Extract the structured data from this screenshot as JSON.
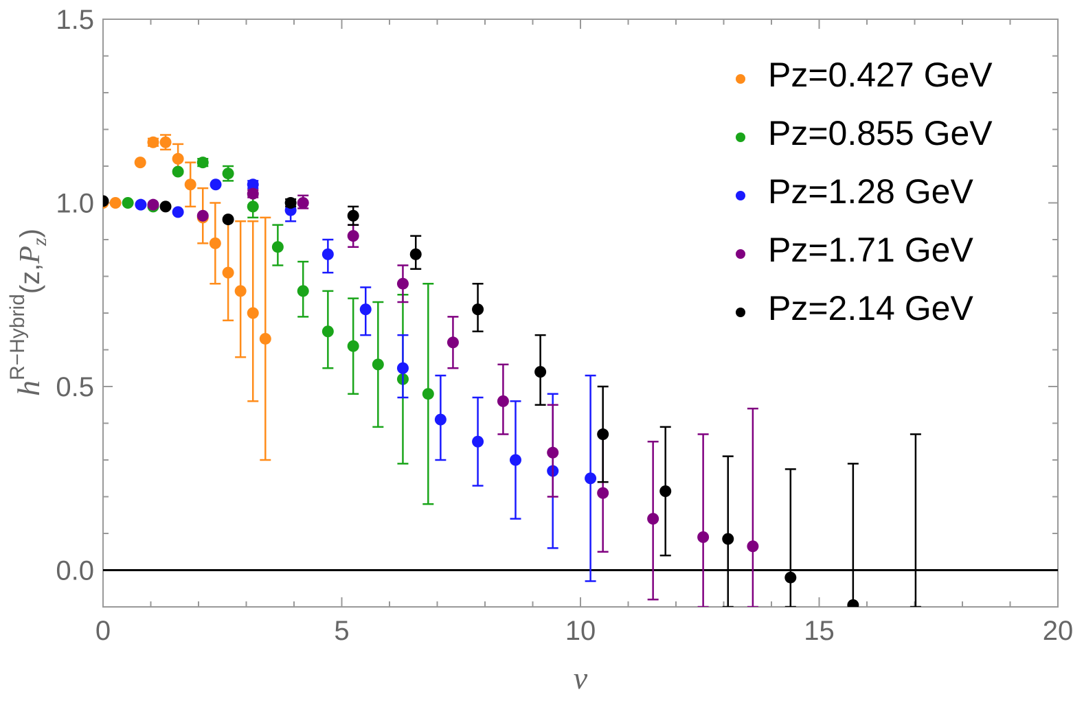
{
  "chart_data": {
    "type": "scatter",
    "xlabel": "ν",
    "ylabel": {
      "base": "h",
      "superscript": "R−Hybrid",
      "args_prefix": "(z,",
      "P": "P",
      "P_sub": "z",
      "args_suffix": ")"
    },
    "xlim": [
      0,
      20
    ],
    "ylim": [
      -0.1,
      1.5
    ],
    "x_ticks": [
      "0",
      "5",
      "10",
      "15",
      "20"
    ],
    "y_ticks": [
      "0.0",
      "0.5",
      "1.0",
      "1.5"
    ],
    "legend_position": "top-right",
    "grid": false,
    "series": [
      {
        "name": "Pz=0.427 GeV",
        "color": "#ff8c1a",
        "points": [
          {
            "x": 0.0,
            "y": 1.0,
            "lo": 1.0,
            "hi": 1.0
          },
          {
            "x": 0.26,
            "y": 1.0,
            "lo": 1.0,
            "hi": 1.0
          },
          {
            "x": 0.78,
            "y": 1.11,
            "lo": 1.11,
            "hi": 1.11
          },
          {
            "x": 1.05,
            "y": 1.165,
            "lo": 1.155,
            "hi": 1.175
          },
          {
            "x": 1.31,
            "y": 1.165,
            "lo": 1.145,
            "hi": 1.185
          },
          {
            "x": 1.57,
            "y": 1.12,
            "lo": 1.08,
            "hi": 1.16
          },
          {
            "x": 1.83,
            "y": 1.05,
            "lo": 0.99,
            "hi": 1.11
          },
          {
            "x": 2.09,
            "y": 0.96,
            "lo": 0.89,
            "hi": 1.04
          },
          {
            "x": 2.35,
            "y": 0.89,
            "lo": 0.78,
            "hi": 1.0
          },
          {
            "x": 2.62,
            "y": 0.81,
            "lo": 0.68,
            "hi": 0.95
          },
          {
            "x": 2.88,
            "y": 0.76,
            "lo": 0.58,
            "hi": 0.95
          },
          {
            "x": 3.14,
            "y": 0.7,
            "lo": 0.46,
            "hi": 0.95
          },
          {
            "x": 3.4,
            "y": 0.63,
            "lo": 0.3,
            "hi": 0.96
          }
        ]
      },
      {
        "name": "Pz=0.855 GeV",
        "color": "#1aa51a",
        "points": [
          {
            "x": 0.52,
            "y": 1.0,
            "lo": 1.0,
            "hi": 1.0
          },
          {
            "x": 1.05,
            "y": 0.99,
            "lo": 0.99,
            "hi": 0.99
          },
          {
            "x": 1.57,
            "y": 1.085,
            "lo": 1.085,
            "hi": 1.085
          },
          {
            "x": 2.09,
            "y": 1.11,
            "lo": 1.1,
            "hi": 1.12
          },
          {
            "x": 2.62,
            "y": 1.08,
            "lo": 1.06,
            "hi": 1.1
          },
          {
            "x": 3.14,
            "y": 0.99,
            "lo": 0.96,
            "hi": 1.02
          },
          {
            "x": 3.66,
            "y": 0.88,
            "lo": 0.83,
            "hi": 0.94
          },
          {
            "x": 4.19,
            "y": 0.76,
            "lo": 0.69,
            "hi": 0.84
          },
          {
            "x": 4.71,
            "y": 0.65,
            "lo": 0.55,
            "hi": 0.76
          },
          {
            "x": 5.24,
            "y": 0.61,
            "lo": 0.48,
            "hi": 0.74
          },
          {
            "x": 5.76,
            "y": 0.56,
            "lo": 0.39,
            "hi": 0.73
          },
          {
            "x": 6.28,
            "y": 0.52,
            "lo": 0.29,
            "hi": 0.75
          },
          {
            "x": 6.81,
            "y": 0.48,
            "lo": 0.18,
            "hi": 0.78
          }
        ]
      },
      {
        "name": "Pz=1.28 GeV",
        "color": "#1a1aff",
        "points": [
          {
            "x": 0.79,
            "y": 0.995,
            "lo": 0.995,
            "hi": 0.995
          },
          {
            "x": 1.57,
            "y": 0.975,
            "lo": 0.975,
            "hi": 0.975
          },
          {
            "x": 2.36,
            "y": 1.05,
            "lo": 1.05,
            "hi": 1.05
          },
          {
            "x": 3.14,
            "y": 1.05,
            "lo": 1.04,
            "hi": 1.06
          },
          {
            "x": 3.93,
            "y": 0.98,
            "lo": 0.95,
            "hi": 1.0
          },
          {
            "x": 4.71,
            "y": 0.86,
            "lo": 0.81,
            "hi": 0.9
          },
          {
            "x": 5.5,
            "y": 0.71,
            "lo": 0.64,
            "hi": 0.77
          },
          {
            "x": 6.28,
            "y": 0.55,
            "lo": 0.47,
            "hi": 0.64
          },
          {
            "x": 7.07,
            "y": 0.41,
            "lo": 0.3,
            "hi": 0.53
          },
          {
            "x": 7.85,
            "y": 0.35,
            "lo": 0.23,
            "hi": 0.47
          },
          {
            "x": 8.64,
            "y": 0.3,
            "lo": 0.14,
            "hi": 0.46
          },
          {
            "x": 9.42,
            "y": 0.27,
            "lo": 0.06,
            "hi": 0.48
          },
          {
            "x": 10.21,
            "y": 0.25,
            "lo": -0.03,
            "hi": 0.53
          }
        ]
      },
      {
        "name": "Pz=1.71 GeV",
        "color": "#800080",
        "points": [
          {
            "x": 1.05,
            "y": 0.995,
            "lo": 0.995,
            "hi": 0.995
          },
          {
            "x": 2.09,
            "y": 0.965,
            "lo": 0.965,
            "hi": 0.965
          },
          {
            "x": 3.14,
            "y": 1.025,
            "lo": 1.015,
            "hi": 1.035
          },
          {
            "x": 4.19,
            "y": 1.0,
            "lo": 0.985,
            "hi": 1.02
          },
          {
            "x": 5.24,
            "y": 0.91,
            "lo": 0.88,
            "hi": 0.94
          },
          {
            "x": 6.28,
            "y": 0.78,
            "lo": 0.73,
            "hi": 0.83
          },
          {
            "x": 7.33,
            "y": 0.62,
            "lo": 0.55,
            "hi": 0.69
          },
          {
            "x": 8.38,
            "y": 0.46,
            "lo": 0.37,
            "hi": 0.56
          },
          {
            "x": 9.42,
            "y": 0.32,
            "lo": 0.2,
            "hi": 0.45
          },
          {
            "x": 10.47,
            "y": 0.21,
            "lo": 0.05,
            "hi": 0.37
          },
          {
            "x": 11.52,
            "y": 0.14,
            "lo": -0.08,
            "hi": 0.35
          },
          {
            "x": 12.57,
            "y": 0.09,
            "lo": -0.1,
            "hi": 0.37
          },
          {
            "x": 13.61,
            "y": 0.065,
            "lo": -0.1,
            "hi": 0.44
          }
        ]
      },
      {
        "name": "Pz=2.14 GeV",
        "color": "#000000",
        "points": [
          {
            "x": 0.0,
            "y": 1.005,
            "lo": 1.005,
            "hi": 1.005
          },
          {
            "x": 1.31,
            "y": 0.99,
            "lo": 0.99,
            "hi": 0.99
          },
          {
            "x": 2.62,
            "y": 0.955,
            "lo": 0.955,
            "hi": 0.955
          },
          {
            "x": 3.93,
            "y": 1.0,
            "lo": 0.99,
            "hi": 1.01
          },
          {
            "x": 5.24,
            "y": 0.965,
            "lo": 0.94,
            "hi": 0.99
          },
          {
            "x": 6.55,
            "y": 0.86,
            "lo": 0.82,
            "hi": 0.91
          },
          {
            "x": 7.85,
            "y": 0.71,
            "lo": 0.65,
            "hi": 0.78
          },
          {
            "x": 9.16,
            "y": 0.54,
            "lo": 0.45,
            "hi": 0.64
          },
          {
            "x": 10.47,
            "y": 0.37,
            "lo": 0.24,
            "hi": 0.5
          },
          {
            "x": 11.78,
            "y": 0.215,
            "lo": 0.04,
            "hi": 0.39
          },
          {
            "x": 13.09,
            "y": 0.085,
            "lo": -0.1,
            "hi": 0.31
          },
          {
            "x": 14.4,
            "y": -0.02,
            "lo": -0.1,
            "hi": 0.275
          },
          {
            "x": 15.71,
            "y": -0.095,
            "lo": -0.1,
            "hi": 0.29
          },
          {
            "x": 17.02,
            "y": -0.2,
            "lo": -0.1,
            "hi": 0.37
          }
        ]
      }
    ]
  }
}
